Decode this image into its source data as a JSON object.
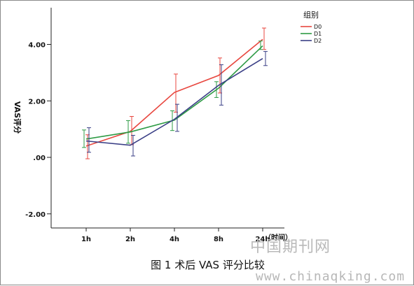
{
  "chart_data": {
    "type": "line",
    "categories": [
      "1h",
      "2h",
      "4h",
      "8h",
      "24h"
    ],
    "xlabel": "（时间）",
    "ylabel": "VAS评分",
    "ylim": [
      -2.5,
      5.3
    ],
    "y_ticks": [
      4,
      2,
      0,
      -2
    ],
    "y_tick_labels": [
      "4.00",
      "2.00",
      ".00",
      "-2.00"
    ],
    "legend_title": "组别",
    "legend_position": "top-right",
    "grid": false,
    "error_bars": true,
    "series": [
      {
        "name": "D0",
        "color": "#e8473f",
        "values": [
          0.4,
          0.92,
          2.3,
          2.9,
          4.18
        ],
        "err_low": [
          -0.05,
          0.45,
          1.6,
          2.28,
          3.82
        ],
        "err_high": [
          0.8,
          1.45,
          2.95,
          3.52,
          4.58
        ]
      },
      {
        "name": "D1",
        "color": "#2e9b45",
        "values": [
          0.65,
          0.9,
          1.32,
          2.45,
          3.95
        ],
        "err_low": [
          0.35,
          0.5,
          0.95,
          2.12,
          3.82
        ],
        "err_high": [
          0.97,
          1.3,
          1.65,
          2.68,
          4.12
        ]
      },
      {
        "name": "D2",
        "color": "#3a3f86",
        "values": [
          0.58,
          0.43,
          1.35,
          2.55,
          3.5
        ],
        "err_low": [
          0.18,
          0.05,
          0.92,
          1.85,
          3.25
        ],
        "err_high": [
          1.05,
          0.78,
          1.88,
          3.28,
          3.75
        ]
      }
    ]
  },
  "caption": "图 1  术后 VAS 评分比较",
  "watermark": {
    "line1": "中国期刊网",
    "line2": "www.chinaqking.com"
  }
}
